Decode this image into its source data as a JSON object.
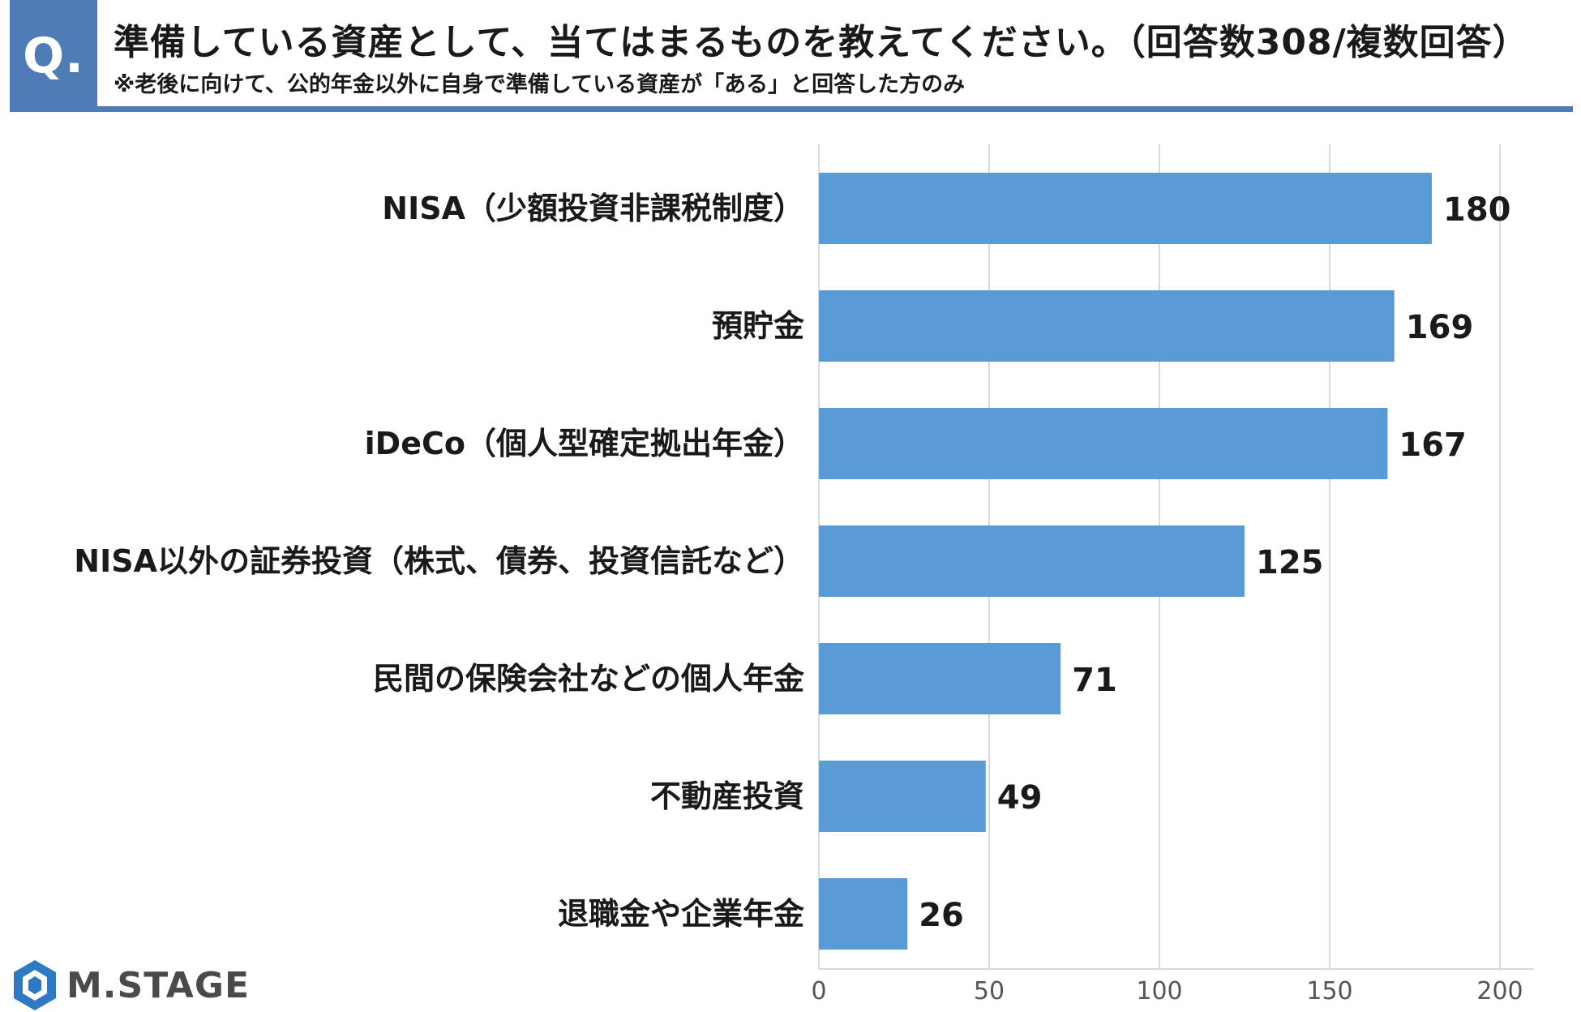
{
  "header": {
    "badge": "Q.",
    "question": "準備している資産として、当てはまるものを教えてください。（回答数308/複数回答）",
    "note": "※老後に向けて、公的年金以外に自身で準備している資産が「ある」と回答した方のみ"
  },
  "logo": {
    "text": "M.STAGE",
    "mark": "hexagon-logo-icon"
  },
  "colors": {
    "accent": "#4f7bb7",
    "bar": "#5b9bd5",
    "grid": "#d9d9d9"
  },
  "chart_data": {
    "type": "bar",
    "orientation": "horizontal",
    "categories": [
      "NISA（少額投資非課税制度）",
      "預貯金",
      "iDeCo（個人型確定拠出年金）",
      "NISA以外の証券投資（株式、債券、投資信託など）",
      "民間の保険会社などの個人年金",
      "不動産投資",
      "退職金や企業年金"
    ],
    "values": [
      180,
      169,
      167,
      125,
      71,
      49,
      26
    ],
    "xlim": [
      0,
      200
    ],
    "xticks": [
      0,
      50,
      100,
      150,
      200
    ],
    "grid": true,
    "data_labels": true
  }
}
